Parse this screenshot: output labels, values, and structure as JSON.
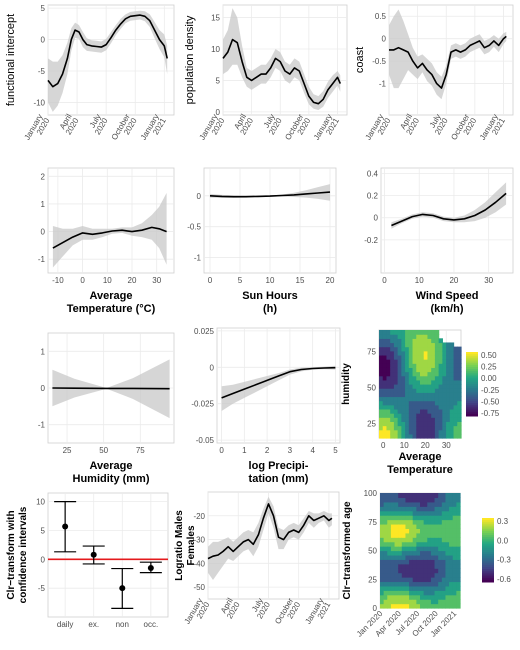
{
  "chart_data": [
    {
      "id": "p1",
      "type": "line",
      "ylabel": "functional intercept",
      "xlabel": "",
      "xlim": [
        0,
        13
      ],
      "ylim": [
        -12,
        5.5
      ],
      "yticks": [
        5,
        0,
        -5,
        -10
      ],
      "xticks": [
        {
          "v": 0,
          "label": [
            "January",
            "2020"
          ]
        },
        {
          "v": 3,
          "label": [
            "April",
            "2020"
          ]
        },
        {
          "v": 6,
          "label": [
            "July",
            "2020"
          ]
        },
        {
          "v": 9,
          "label": [
            "October",
            "2020"
          ]
        },
        {
          "v": 12,
          "label": [
            "January",
            "2021"
          ]
        }
      ],
      "x": [
        0,
        0.5,
        1,
        1.5,
        2,
        2.4,
        2.8,
        3.2,
        3.6,
        4,
        4.5,
        5,
        5.5,
        6,
        6.5,
        7,
        7.5,
        8,
        8.5,
        9,
        9.5,
        10,
        10.5,
        11,
        11.5,
        12,
        12.3
      ],
      "y": [
        -6.5,
        -7.5,
        -7,
        -5.5,
        -3,
        0,
        1.5,
        1.2,
        0,
        -0.8,
        -1,
        -1.1,
        -1.2,
        -0.8,
        0.3,
        1.5,
        2.5,
        3.3,
        3.7,
        3.8,
        3.9,
        3.7,
        3,
        1.5,
        0,
        -1,
        -3
      ],
      "upper": [
        -3,
        -3.5,
        -3.5,
        -2.5,
        -0.5,
        1.8,
        2.7,
        2.3,
        1.2,
        0.2,
        -0.1,
        -0.2,
        -0.3,
        0.1,
        1.2,
        2.3,
        3.3,
        4,
        4.4,
        4.5,
        4.6,
        4.5,
        4,
        2.8,
        1.5,
        0.8,
        -1
      ],
      "lower": [
        -10,
        -11.5,
        -10.5,
        -8.5,
        -5.5,
        -1.8,
        0.3,
        0.1,
        -1.2,
        -1.8,
        -1.9,
        -2,
        -2.1,
        -1.7,
        -0.6,
        0.7,
        1.7,
        2.6,
        3,
        3.1,
        3.2,
        2.9,
        2,
        0.2,
        -1.5,
        -2.8,
        -5.5
      ]
    },
    {
      "id": "p2",
      "type": "line",
      "ylabel": "population density",
      "xlabel": "",
      "xlim": [
        0,
        13
      ],
      "ylim": [
        -0.5,
        17
      ],
      "yticks": [
        0,
        5,
        10,
        15
      ],
      "xticks": [
        {
          "v": 0,
          "label": [
            "January",
            "2020"
          ]
        },
        {
          "v": 3,
          "label": [
            "April",
            "2020"
          ]
        },
        {
          "v": 6,
          "label": [
            "July",
            "2020"
          ]
        },
        {
          "v": 9,
          "label": [
            "October",
            "2020"
          ]
        },
        {
          "v": 12,
          "label": [
            "January",
            "2021"
          ]
        }
      ],
      "x": [
        0,
        0.5,
        1,
        1.5,
        2,
        2.5,
        3,
        3.5,
        4,
        4.5,
        5,
        5.5,
        6,
        6.5,
        7,
        7.5,
        8,
        8.5,
        9,
        9.5,
        10,
        10.5,
        11,
        11.5,
        12,
        12.3
      ],
      "y": [
        8.5,
        9.5,
        11.5,
        11,
        8,
        5.5,
        5,
        5.5,
        6,
        6,
        7,
        8.5,
        8,
        6.5,
        6,
        7,
        6.5,
        4.5,
        2.5,
        1.5,
        1.3,
        2,
        3.5,
        4.5,
        5.5,
        4.5
      ],
      "upper": [
        11.5,
        13,
        16.5,
        15,
        10.5,
        7,
        6.5,
        7,
        7.5,
        7.5,
        8.5,
        10,
        9.5,
        8,
        7.5,
        8.5,
        8,
        6,
        4,
        2.8,
        2.5,
        3.3,
        4.8,
        5.8,
        6.5,
        5.8
      ],
      "lower": [
        6,
        6.5,
        7.5,
        7.5,
        5.5,
        4,
        3.5,
        4,
        4.5,
        4.5,
        5.5,
        7,
        6.5,
        5,
        4.5,
        5.5,
        5,
        3,
        1.2,
        0.5,
        0.3,
        0.8,
        2.2,
        3.2,
        4.2,
        3.2
      ]
    },
    {
      "id": "p3",
      "type": "line",
      "ylabel": "coast",
      "xlabel": "",
      "xlim": [
        0,
        13
      ],
      "ylim": [
        -1.7,
        0.75
      ],
      "yticks": [
        0.5,
        0.0,
        -0.5,
        -1.0
      ],
      "xticks": [
        {
          "v": 0,
          "label": [
            "January",
            "2020"
          ]
        },
        {
          "v": 3,
          "label": [
            "April",
            "2020"
          ]
        },
        {
          "v": 6,
          "label": [
            "July",
            "2020"
          ]
        },
        {
          "v": 9,
          "label": [
            "October",
            "2020"
          ]
        },
        {
          "v": 12,
          "label": [
            "January",
            "2021"
          ]
        }
      ],
      "x": [
        0,
        0.5,
        1,
        1.5,
        2,
        2.5,
        3,
        3.5,
        4,
        4.5,
        5,
        5.5,
        6,
        6.5,
        7,
        7.5,
        8,
        8.5,
        9,
        9.5,
        10,
        10.5,
        11,
        11.5,
        12,
        12.3
      ],
      "y": [
        -0.25,
        -0.25,
        -0.2,
        -0.25,
        -0.3,
        -0.5,
        -0.65,
        -0.55,
        -0.7,
        -0.8,
        -1.0,
        -1.1,
        -0.8,
        -0.3,
        -0.25,
        -0.3,
        -0.25,
        -0.15,
        -0.1,
        -0.05,
        -0.2,
        -0.15,
        -0.05,
        -0.15,
        0.0,
        0.05
      ],
      "upper": [
        0.3,
        0.5,
        0.65,
        0.4,
        0.1,
        -0.2,
        -0.4,
        -0.35,
        -0.45,
        -0.55,
        -0.75,
        -0.85,
        -0.6,
        -0.15,
        -0.1,
        -0.15,
        -0.1,
        0.0,
        0.05,
        0.1,
        -0.05,
        0.0,
        0.08,
        0.0,
        0.12,
        0.15
      ],
      "lower": [
        -0.8,
        -1.1,
        -1.1,
        -0.9,
        -0.7,
        -0.8,
        -0.9,
        -0.75,
        -0.95,
        -1.05,
        -1.25,
        -1.35,
        -1.0,
        -0.45,
        -0.4,
        -0.45,
        -0.4,
        -0.3,
        -0.25,
        -0.2,
        -0.35,
        -0.3,
        -0.18,
        -0.3,
        -0.12,
        -0.05
      ]
    },
    {
      "id": "p4",
      "type": "line",
      "xlabel": [
        "Average",
        "Temperature (°C)"
      ],
      "ylabel": "",
      "xlim": [
        -14,
        37
      ],
      "ylim": [
        -1.5,
        2.3
      ],
      "xticks": [
        {
          "v": -10,
          "label": [
            "-10"
          ]
        },
        {
          "v": 0,
          "label": [
            "0"
          ]
        },
        {
          "v": 10,
          "label": [
            "10"
          ]
        },
        {
          "v": 20,
          "label": [
            "20"
          ]
        },
        {
          "v": 30,
          "label": [
            "30"
          ]
        }
      ],
      "yticks": [
        2,
        1,
        0,
        -1
      ],
      "x": [
        -12,
        -8,
        -4,
        0,
        4,
        8,
        12,
        16,
        20,
        24,
        28,
        31,
        34
      ],
      "y": [
        -0.6,
        -0.4,
        -0.2,
        -0.05,
        -0.1,
        -0.05,
        0.02,
        0.05,
        0.0,
        0.05,
        0.15,
        0.1,
        0.0
      ],
      "upper": [
        0.2,
        0.1,
        0.1,
        0.2,
        0.1,
        0.1,
        0.1,
        0.15,
        0.15,
        0.3,
        0.6,
        0.9,
        1.4
      ],
      "lower": [
        -1.3,
        -0.9,
        -0.5,
        -0.3,
        -0.3,
        -0.2,
        -0.08,
        -0.05,
        -0.15,
        -0.2,
        -0.3,
        -0.6,
        -1.2
      ]
    },
    {
      "id": "p5",
      "type": "line",
      "xlabel": [
        "Sun Hours",
        "(h)"
      ],
      "ylabel": "",
      "xlim": [
        -1,
        21
      ],
      "ylim": [
        -1.25,
        0.45
      ],
      "xticks": [
        {
          "v": 0,
          "label": [
            "0"
          ]
        },
        {
          "v": 5,
          "label": [
            "5"
          ]
        },
        {
          "v": 10,
          "label": [
            "10"
          ]
        },
        {
          "v": 15,
          "label": [
            "15"
          ]
        },
        {
          "v": 20,
          "label": [
            "20"
          ]
        }
      ],
      "yticks": [
        0.0,
        -0.5,
        -1.0
      ],
      "x": [
        0,
        2,
        4,
        6,
        8,
        10,
        12,
        14,
        16,
        18,
        20
      ],
      "y": [
        0.0,
        -0.01,
        -0.015,
        -0.015,
        -0.01,
        -0.005,
        0.005,
        0.015,
        0.03,
        0.045,
        0.06
      ],
      "upper": [
        0.03,
        0.015,
        0.005,
        0.0,
        0.0,
        0.005,
        0.02,
        0.05,
        0.09,
        0.14,
        0.19
      ],
      "lower": [
        -0.03,
        -0.035,
        -0.035,
        -0.03,
        -0.02,
        -0.015,
        -0.01,
        -0.02,
        -0.03,
        -0.05,
        -0.08
      ]
    },
    {
      "id": "p6",
      "type": "line",
      "xlabel": [
        "Wind Speed",
        "(km/h)"
      ],
      "ylabel": "",
      "xlim": [
        -1,
        37
      ],
      "ylim": [
        -0.5,
        0.45
      ],
      "xticks": [
        {
          "v": 0,
          "label": [
            "0"
          ]
        },
        {
          "v": 10,
          "label": [
            "10"
          ]
        },
        {
          "v": 20,
          "label": [
            "20"
          ]
        },
        {
          "v": 30,
          "label": [
            "30"
          ]
        }
      ],
      "yticks": [
        0.4,
        0.2,
        0.0,
        -0.2
      ],
      "x": [
        2,
        5,
        8,
        11,
        14,
        17,
        20,
        23,
        26,
        29,
        32,
        35
      ],
      "y": [
        -0.07,
        -0.03,
        0.01,
        0.03,
        0.02,
        -0.01,
        -0.02,
        -0.01,
        0.02,
        0.07,
        0.14,
        0.22
      ],
      "upper": [
        -0.04,
        -0.01,
        0.03,
        0.05,
        0.04,
        0.01,
        0.0,
        0.02,
        0.07,
        0.14,
        0.23,
        0.32
      ],
      "lower": [
        -0.1,
        -0.05,
        -0.01,
        0.01,
        0.0,
        -0.03,
        -0.04,
        -0.04,
        -0.03,
        0.0,
        0.05,
        0.12
      ]
    },
    {
      "id": "p7",
      "type": "line",
      "xlabel": [
        "Average",
        "Humidity (mm)"
      ],
      "ylabel": "",
      "xlim": [
        12,
        98
      ],
      "ylim": [
        -1.5,
        1.5
      ],
      "xticks": [
        {
          "v": 25,
          "label": [
            "25"
          ]
        },
        {
          "v": 50,
          "label": [
            "50"
          ]
        },
        {
          "v": 75,
          "label": [
            "75"
          ]
        }
      ],
      "yticks": [
        1,
        0,
        -1
      ],
      "x": [
        15,
        30,
        52,
        70,
        95
      ],
      "y": [
        0.0,
        -0.005,
        -0.01,
        -0.01,
        -0.02
      ],
      "upper": [
        0.5,
        0.25,
        0.0,
        0.27,
        0.78
      ],
      "lower": [
        -0.5,
        -0.26,
        -0.02,
        -0.3,
        -0.82
      ]
    },
    {
      "id": "p8",
      "type": "line",
      "xlabel": [
        "log Precipi-",
        "tation (mm)"
      ],
      "ylabel": "",
      "xlim": [
        -0.2,
        5.2
      ],
      "ylim": [
        -0.052,
        0.027
      ],
      "xticks": [
        {
          "v": 0,
          "label": [
            "0"
          ]
        },
        {
          "v": 1,
          "label": [
            "1"
          ]
        },
        {
          "v": 2,
          "label": [
            "2"
          ]
        },
        {
          "v": 3,
          "label": [
            "3"
          ]
        },
        {
          "v": 4,
          "label": [
            "4"
          ]
        },
        {
          "v": 5,
          "label": [
            "5"
          ]
        }
      ],
      "yticks": [
        0.025,
        0.0,
        -0.025,
        -0.05
      ],
      "x": [
        0,
        0.5,
        1,
        1.5,
        2,
        2.5,
        3,
        3.5,
        4,
        4.5,
        5
      ],
      "y": [
        -0.021,
        -0.018,
        -0.015,
        -0.012,
        -0.009,
        -0.006,
        -0.003,
        -0.0015,
        -0.0008,
        -0.0005,
        -0.0003
      ],
      "upper": [
        -0.013,
        -0.012,
        -0.01,
        -0.008,
        -0.006,
        -0.004,
        -0.0015,
        -0.0002,
        0.0,
        0.0005,
        0.001
      ],
      "lower": [
        -0.03,
        -0.025,
        -0.021,
        -0.017,
        -0.013,
        -0.009,
        -0.005,
        -0.0028,
        -0.0016,
        -0.0014,
        -0.0016
      ]
    },
    {
      "id": "p9",
      "type": "heatmap",
      "ylabel": "humidity",
      "xlabel": [
        "Average",
        "Temperature"
      ],
      "xlim": [
        -2,
        37
      ],
      "ylim": [
        15,
        90
      ],
      "xticks": [
        {
          "v": 0,
          "label": [
            "0"
          ]
        },
        {
          "v": 10,
          "label": [
            "10"
          ]
        },
        {
          "v": 20,
          "label": [
            "20"
          ]
        },
        {
          "v": 30,
          "label": [
            "30"
          ]
        }
      ],
      "yticks": [
        25,
        50,
        75
      ],
      "legend": {
        "ticks": [
          "0.50",
          "0.25",
          "0.00",
          "-0.25",
          "-0.50",
          "-0.75"
        ]
      }
    },
    {
      "id": "p10",
      "type": "errorbar",
      "ylabel": [
        "Clr−transform with",
        "confidence intervals"
      ],
      "xlabel": "",
      "xlim": [
        0.4,
        4.6
      ],
      "ylim": [
        -10,
        11.5
      ],
      "categories": [
        "daily",
        "ex.",
        "non",
        "occ."
      ],
      "yticks": [
        10,
        5,
        0,
        -5
      ],
      "points": [
        {
          "x": 1,
          "y": 5.7,
          "lo": 1.3,
          "hi": 10.0
        },
        {
          "x": 2,
          "y": 0.8,
          "lo": -0.8,
          "hi": 2.3
        },
        {
          "x": 3,
          "y": -5.0,
          "lo": -8.5,
          "hi": -1.6
        },
        {
          "x": 4,
          "y": -1.5,
          "lo": -2.3,
          "hi": -0.5
        }
      ],
      "hline": 0
    },
    {
      "id": "p11",
      "type": "line",
      "ylabel": [
        "Logratio Males",
        "Females"
      ],
      "xlabel": "",
      "xlim": [
        0,
        13
      ],
      "ylim": [
        -55,
        -10
      ],
      "yticks": [
        -20,
        -30,
        -40,
        -50
      ],
      "xticks": [
        {
          "v": 0,
          "label": [
            "January",
            "2020"
          ]
        },
        {
          "v": 3,
          "label": [
            "April",
            "2020"
          ]
        },
        {
          "v": 6,
          "label": [
            "July",
            "2020"
          ]
        },
        {
          "v": 9,
          "label": [
            "October",
            "2020"
          ]
        },
        {
          "v": 12,
          "label": [
            "January",
            "2021"
          ]
        }
      ],
      "x": [
        0,
        0.5,
        1,
        1.5,
        2,
        2.5,
        3,
        3.5,
        4,
        4.5,
        5,
        5.5,
        6,
        6.5,
        7,
        7.5,
        8,
        8.5,
        9,
        9.5,
        10,
        10.5,
        11,
        11.5,
        12,
        12.3
      ],
      "y": [
        -38,
        -37,
        -36.5,
        -35,
        -33,
        -35,
        -33,
        -31,
        -30,
        -32,
        -28,
        -21,
        -15,
        -20,
        -29,
        -30,
        -27,
        -26,
        -27,
        -24,
        -20,
        -22,
        -21,
        -20,
        -22,
        -21
      ],
      "upper": [
        -33,
        -31,
        -31,
        -30,
        -29,
        -31,
        -29,
        -27,
        -26,
        -27,
        -23,
        -17,
        -12,
        -16,
        -25,
        -26,
        -24,
        -23,
        -24,
        -21,
        -18,
        -19,
        -19,
        -18,
        -19,
        -19
      ],
      "lower": [
        -44,
        -47,
        -44,
        -41,
        -38,
        -39,
        -37,
        -35,
        -34,
        -37,
        -33,
        -26,
        -19,
        -25,
        -34,
        -34,
        -30,
        -29,
        -30,
        -27,
        -23,
        -25,
        -23,
        -22,
        -25,
        -24
      ]
    },
    {
      "id": "p12",
      "type": "heatmap",
      "ylabel": "Clr−transformed age",
      "xlabel": "",
      "xlim": [
        0,
        13
      ],
      "ylim": [
        0,
        100
      ],
      "xticks": [
        {
          "v": 0,
          "label": [
            "Jan 2020"
          ]
        },
        {
          "v": 3,
          "label": [
            "Apr 2020"
          ]
        },
        {
          "v": 6,
          "label": [
            "Jul 2020"
          ]
        },
        {
          "v": 9,
          "label": [
            "Oct 2020"
          ]
        },
        {
          "v": 12,
          "label": [
            "Jan 2021"
          ]
        }
      ],
      "yticks": [
        0,
        25,
        50,
        75,
        100
      ],
      "legend": {
        "ticks": [
          "0.3",
          "0.0",
          "-0.3",
          "-0.6"
        ]
      }
    }
  ]
}
